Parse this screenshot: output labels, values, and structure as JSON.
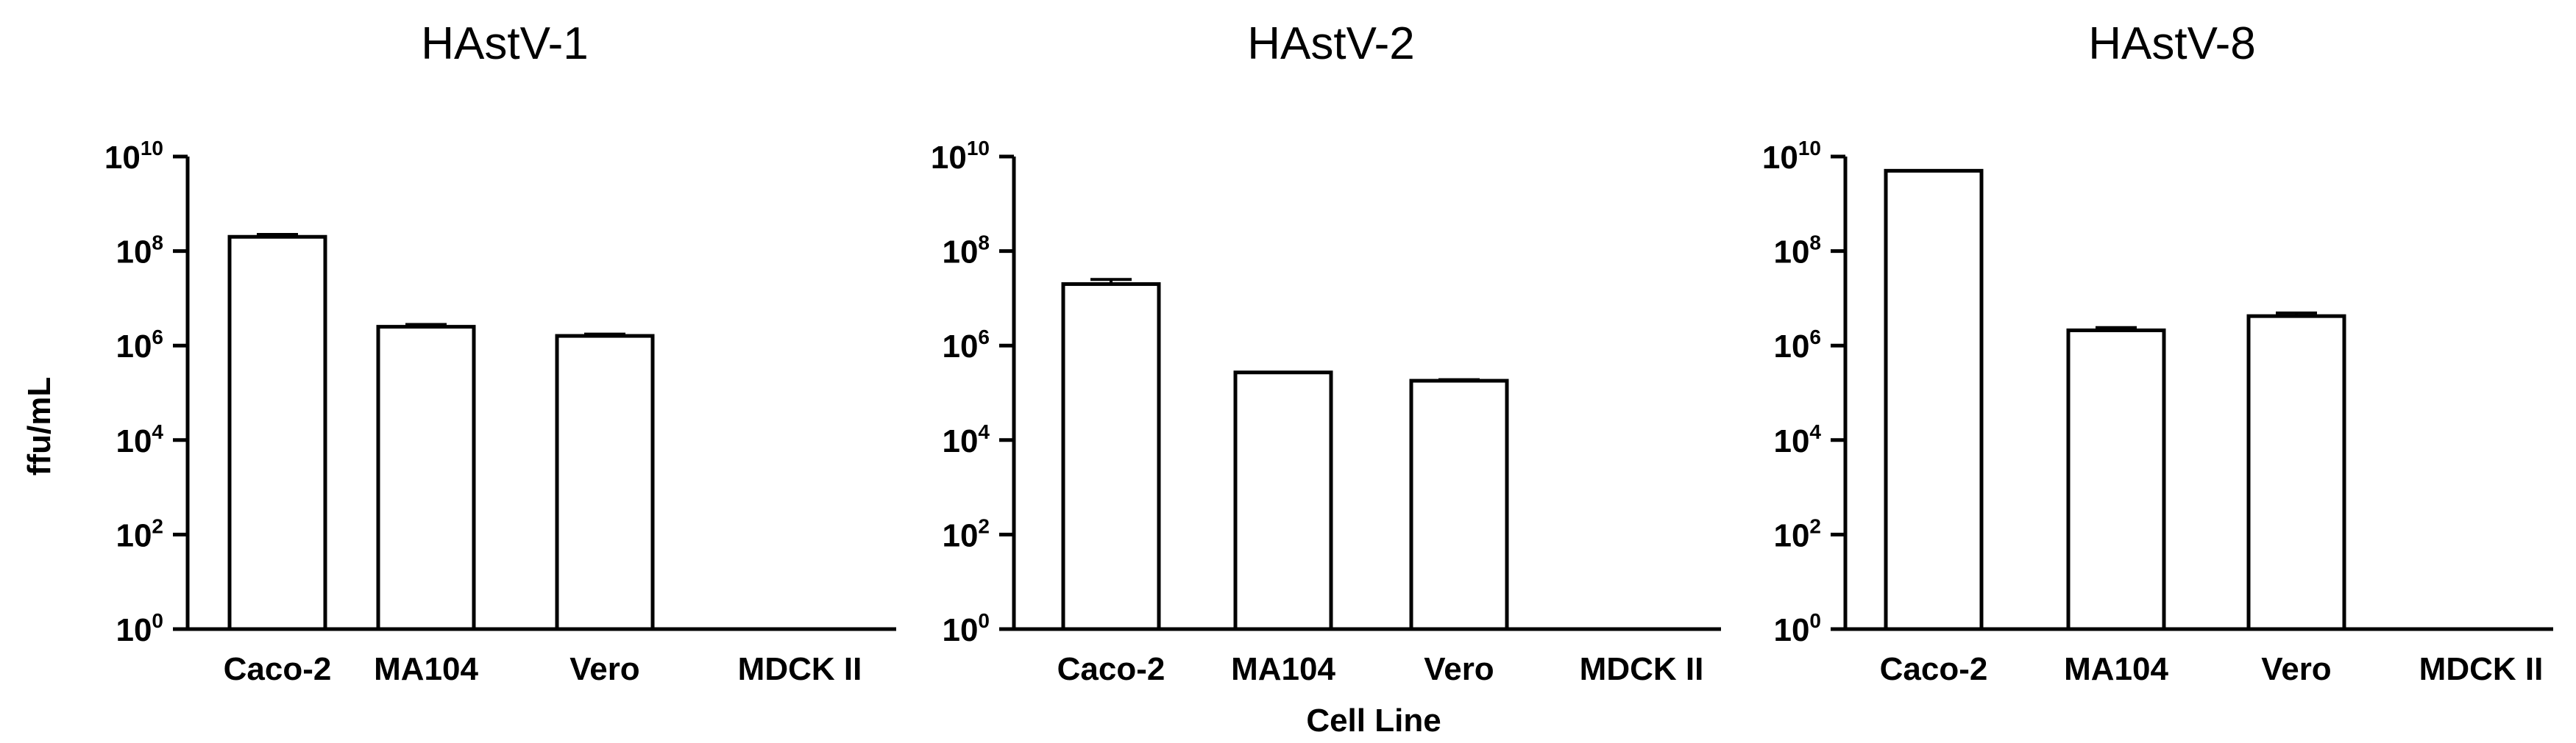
{
  "chart_data": {
    "ylabel": "ffu/mL",
    "xlabel": "Cell Line",
    "yscale": "log10",
    "ylim": [
      1,
      10000000000
    ],
    "yticks": [
      {
        "base": "10",
        "exp": "0",
        "value": 1
      },
      {
        "base": "10",
        "exp": "2",
        "value": 100
      },
      {
        "base": "10",
        "exp": "4",
        "value": 10000
      },
      {
        "base": "10",
        "exp": "6",
        "value": 1000000
      },
      {
        "base": "10",
        "exp": "8",
        "value": 100000000
      },
      {
        "base": "10",
        "exp": "10",
        "value": 10000000000
      }
    ],
    "panels": [
      {
        "type": "bar",
        "title": "HAstV-1",
        "categories": [
          "Caco-2",
          "MA104",
          "Vero",
          "MDCK II"
        ],
        "values": [
          200000000,
          2500000,
          1600000,
          1
        ],
        "errors_upper": [
          225000000,
          2800000,
          1750000,
          1
        ]
      },
      {
        "type": "bar",
        "title": "HAstV-2",
        "categories": [
          "Caco-2",
          "MA104",
          "Vero",
          "MDCK II"
        ],
        "values": [
          20000000,
          270000,
          180000,
          1
        ],
        "errors_upper": [
          25000000,
          270000,
          190000,
          1
        ]
      },
      {
        "type": "bar",
        "title": "HAstV-8",
        "categories": [
          "Caco-2",
          "MA104",
          "Vero",
          "MDCK II"
        ],
        "values": [
          5000000000,
          2100000,
          4200000,
          1
        ],
        "errors_upper": [
          5000000000,
          2400000,
          4900000,
          1
        ]
      }
    ]
  }
}
